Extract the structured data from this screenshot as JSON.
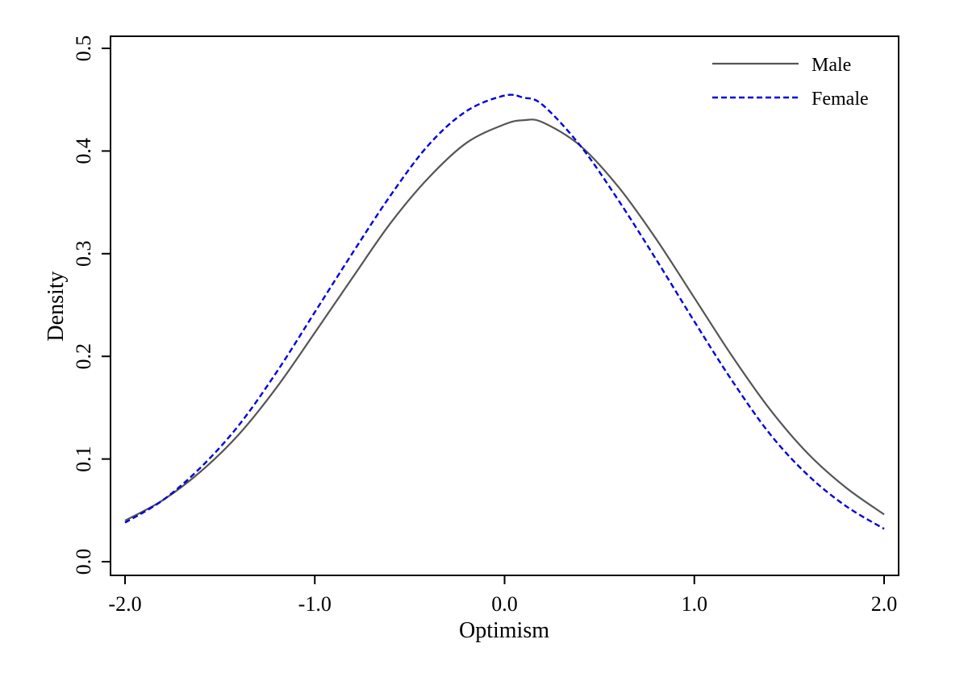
{
  "chart_data": {
    "type": "line",
    "title": "",
    "xlabel": "Optimism",
    "ylabel": "Density",
    "xlim": [
      -2.0,
      2.0
    ],
    "ylim": [
      0.0,
      0.5
    ],
    "x_ticks": [
      "-2.0",
      "-1.0",
      "0.0",
      "1.0",
      "2.0"
    ],
    "y_ticks": [
      "0.0",
      "0.1",
      "0.2",
      "0.3",
      "0.4",
      "0.5"
    ],
    "grid": false,
    "legend": "top-right",
    "x": [
      -2.0,
      -1.8,
      -1.6,
      -1.4,
      -1.2,
      -1.0,
      -0.8,
      -0.6,
      -0.4,
      -0.2,
      0.0,
      0.1,
      0.2,
      0.4,
      0.6,
      0.8,
      1.0,
      1.2,
      1.4,
      1.6,
      1.8,
      2.0
    ],
    "series": [
      {
        "name": "Male",
        "color": "#555555",
        "dash": "solid",
        "values": [
          0.04,
          0.06,
          0.088,
          0.124,
          0.17,
          0.223,
          0.277,
          0.33,
          0.374,
          0.408,
          0.426,
          0.43,
          0.428,
          0.405,
          0.365,
          0.314,
          0.257,
          0.2,
          0.148,
          0.105,
          0.072,
          0.046
        ]
      },
      {
        "name": "Female",
        "color": "#0000dd",
        "dash": "dashed",
        "values": [
          0.038,
          0.06,
          0.092,
          0.133,
          0.185,
          0.243,
          0.301,
          0.357,
          0.406,
          0.439,
          0.454,
          0.452,
          0.445,
          0.405,
          0.352,
          0.294,
          0.234,
          0.176,
          0.124,
          0.084,
          0.054,
          0.032
        ]
      }
    ]
  }
}
